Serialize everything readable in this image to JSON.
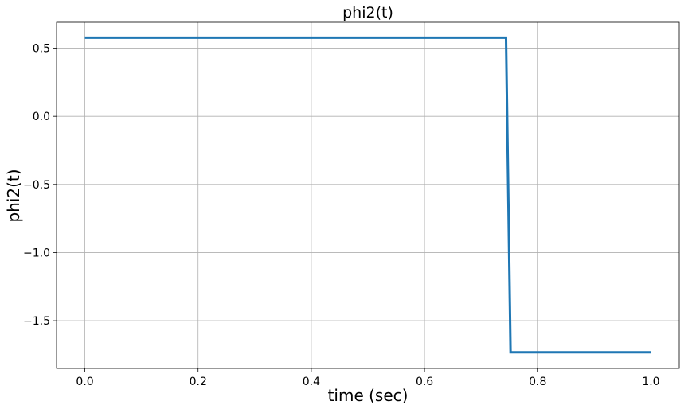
{
  "chart_data": {
    "type": "line",
    "title": "phi2(t)",
    "xlabel": "time (sec)",
    "ylabel": "phi2(t)",
    "xlim": [
      -0.05,
      1.05
    ],
    "ylim": [
      -1.85,
      0.69
    ],
    "xticks": [
      0.0,
      0.2,
      0.4,
      0.6,
      0.8,
      1.0
    ],
    "xtick_labels": [
      "0.0",
      "0.2",
      "0.4",
      "0.6",
      "0.8",
      "1.0"
    ],
    "yticks": [
      0.5,
      0.0,
      -0.5,
      -1.0,
      -1.5
    ],
    "ytick_labels": [
      "0.5",
      "0.0",
      "−0.5",
      "−1.0",
      "−1.5"
    ],
    "grid": true,
    "series": [
      {
        "color": "#1f77b4",
        "x": [
          0.0,
          0.744,
          0.752,
          1.0
        ],
        "y": [
          0.577,
          0.577,
          -1.732,
          -1.732
        ]
      }
    ]
  }
}
